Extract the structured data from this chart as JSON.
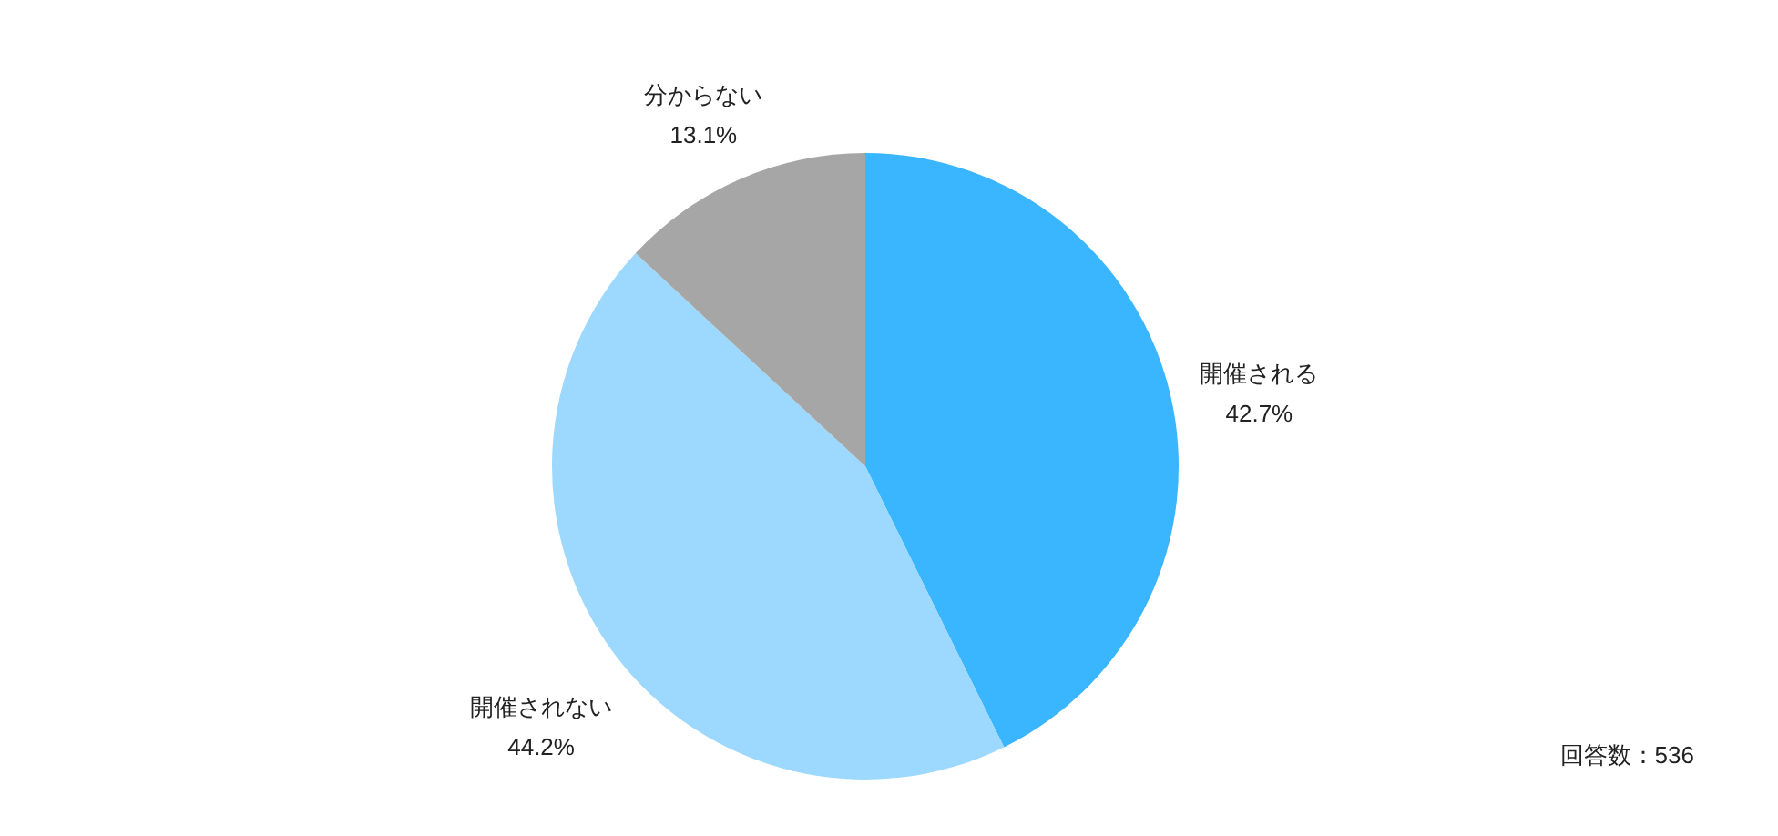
{
  "chart_data": {
    "type": "pie",
    "categories": [
      "開催される",
      "開催されない",
      "分からない"
    ],
    "values": [
      42.7,
      44.2,
      13.1
    ],
    "colors": [
      "#3ab5ff",
      "#9dd8ff",
      "#a6a6a6"
    ],
    "value_labels": [
      "42.7%",
      "44.2%",
      "13.1%"
    ],
    "annotations": [
      "回答数：536"
    ]
  }
}
